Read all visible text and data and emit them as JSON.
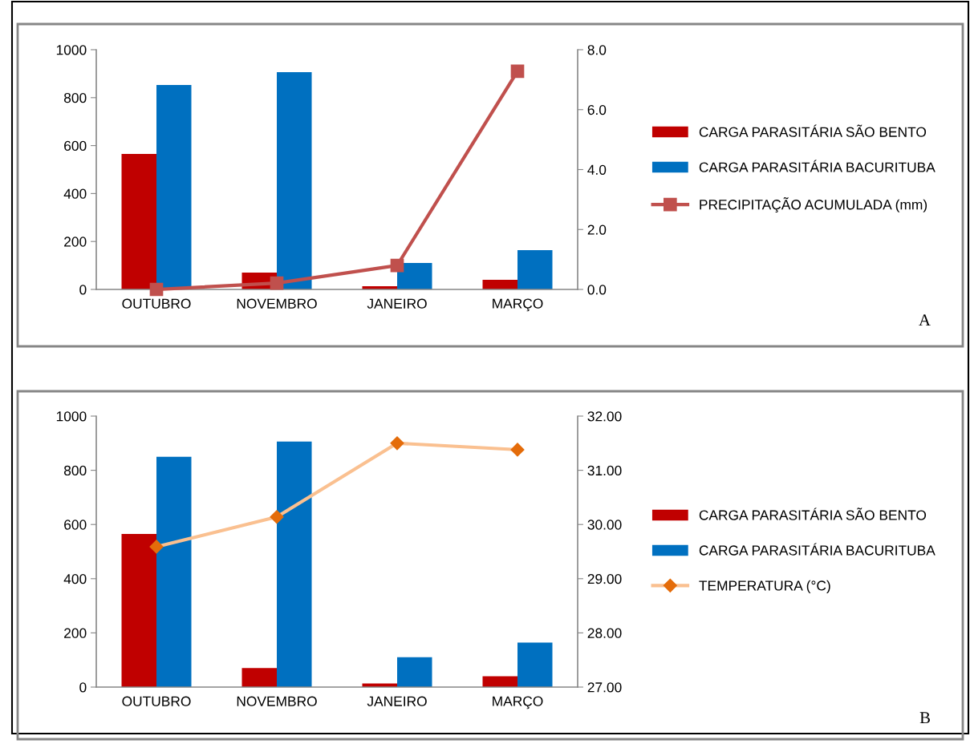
{
  "chart_data": [
    {
      "type": "bar",
      "categories": [
        "OUTUBRO",
        "NOVEMBRO",
        "JANEIRO",
        "MARÇO"
      ],
      "series": [
        {
          "name": "CARGA PARASITÁRIA SÃO BENTO",
          "color": "#c00000",
          "values": [
            565,
            70,
            13,
            40
          ]
        },
        {
          "name": "CARGA PARASITÁRIA BACURITUBA",
          "color": "#0070c0",
          "values": [
            853,
            906,
            110,
            164
          ]
        },
        {
          "name": "PRECIPITAÇÃO ACUMULADA (mm)",
          "type": "line",
          "axis": "y2",
          "color": "#c0504d",
          "marker": "square",
          "values": [
            0.0,
            0.21,
            0.8,
            7.28
          ]
        }
      ],
      "ylim": [
        0,
        1000
      ],
      "yticks": [
        0,
        200,
        400,
        600,
        800,
        1000
      ],
      "y2lim": [
        0,
        8
      ],
      "y2ticks": [
        {
          "value": 0,
          "label": "0.0"
        },
        {
          "value": 2,
          "label": "2.0"
        },
        {
          "value": 4,
          "label": "4.0"
        },
        {
          "value": 6,
          "label": "6.0"
        },
        {
          "value": 8,
          "label": "8.0"
        }
      ],
      "legend": "right",
      "grid": false,
      "annotations": [
        "A"
      ]
    },
    {
      "type": "bar",
      "categories": [
        "OUTUBRO",
        "NOVEMBRO",
        "JANEIRO",
        "MARÇO"
      ],
      "series": [
        {
          "name": "CARGA PARASITÁRIA SÃO BENTO",
          "color": "#c00000",
          "values": [
            565,
            70,
            13,
            40
          ]
        },
        {
          "name": "CARGA PARASITÁRIA BACURITUBA",
          "color": "#0070c0",
          "values": [
            850,
            906,
            110,
            164
          ]
        },
        {
          "name": "TEMPERATURA (°C)",
          "type": "line",
          "axis": "y2",
          "color": "#fac090",
          "marker": "diamond",
          "values": [
            29.59,
            30.14,
            31.5,
            31.38
          ]
        }
      ],
      "ylim": [
        0,
        1000
      ],
      "yticks": [
        0,
        200,
        400,
        600,
        800,
        1000
      ],
      "y2lim": [
        27,
        32
      ],
      "y2ticks": [
        {
          "value": 27,
          "label": "27.00"
        },
        {
          "value": 28,
          "label": "28.00"
        },
        {
          "value": 29,
          "label": "29.00"
        },
        {
          "value": 30,
          "label": "30.00"
        },
        {
          "value": 31,
          "label": "31.00"
        },
        {
          "value": 32,
          "label": "32.00"
        }
      ],
      "legend": "right",
      "grid": false,
      "annotations": [
        "B"
      ]
    }
  ]
}
